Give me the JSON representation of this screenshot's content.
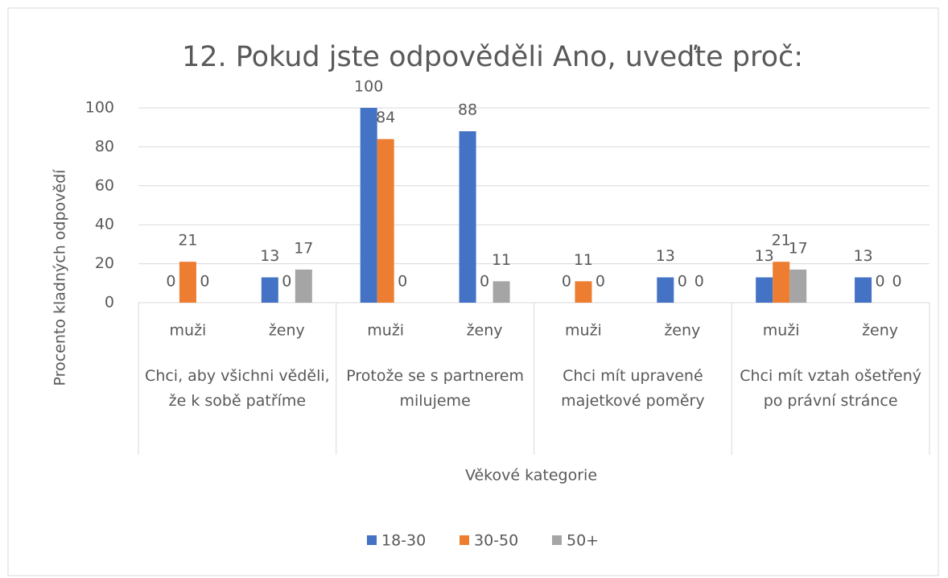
{
  "chart_data": {
    "type": "bar",
    "title": "12. Pokud jste odpověděli Ano, uveďte proč:",
    "y_label": "Procento kladných odpovědí",
    "x_label": "Věkové kategorie",
    "categories": [
      "muži",
      "ženy",
      "muži",
      "ženy",
      "muži",
      "ženy",
      "muži",
      "ženy"
    ],
    "groups": [
      "Chci, aby všichni věděli, že k sobě patříme",
      "Protože se s partnerem milujeme",
      "Chci mít upravené majetkové poměry",
      "Chci mít vztah ošetřený po právní stránce"
    ],
    "series": [
      {
        "name": "18-30",
        "color": "#4472c4",
        "values": [
          0,
          13,
          100,
          88,
          0,
          13,
          13,
          13
        ]
      },
      {
        "name": "30-50",
        "color": "#ed7d31",
        "values": [
          21,
          0,
          84,
          0,
          11,
          0,
          21,
          0
        ]
      },
      {
        "name": "50+",
        "color": "#a5a5a5",
        "values": [
          0,
          17,
          0,
          11,
          0,
          0,
          17,
          0
        ]
      }
    ],
    "ylim": [
      0,
      100
    ],
    "yticks": [
      0,
      20,
      40,
      60,
      80,
      100
    ],
    "grid": true,
    "legend": "bottom"
  }
}
